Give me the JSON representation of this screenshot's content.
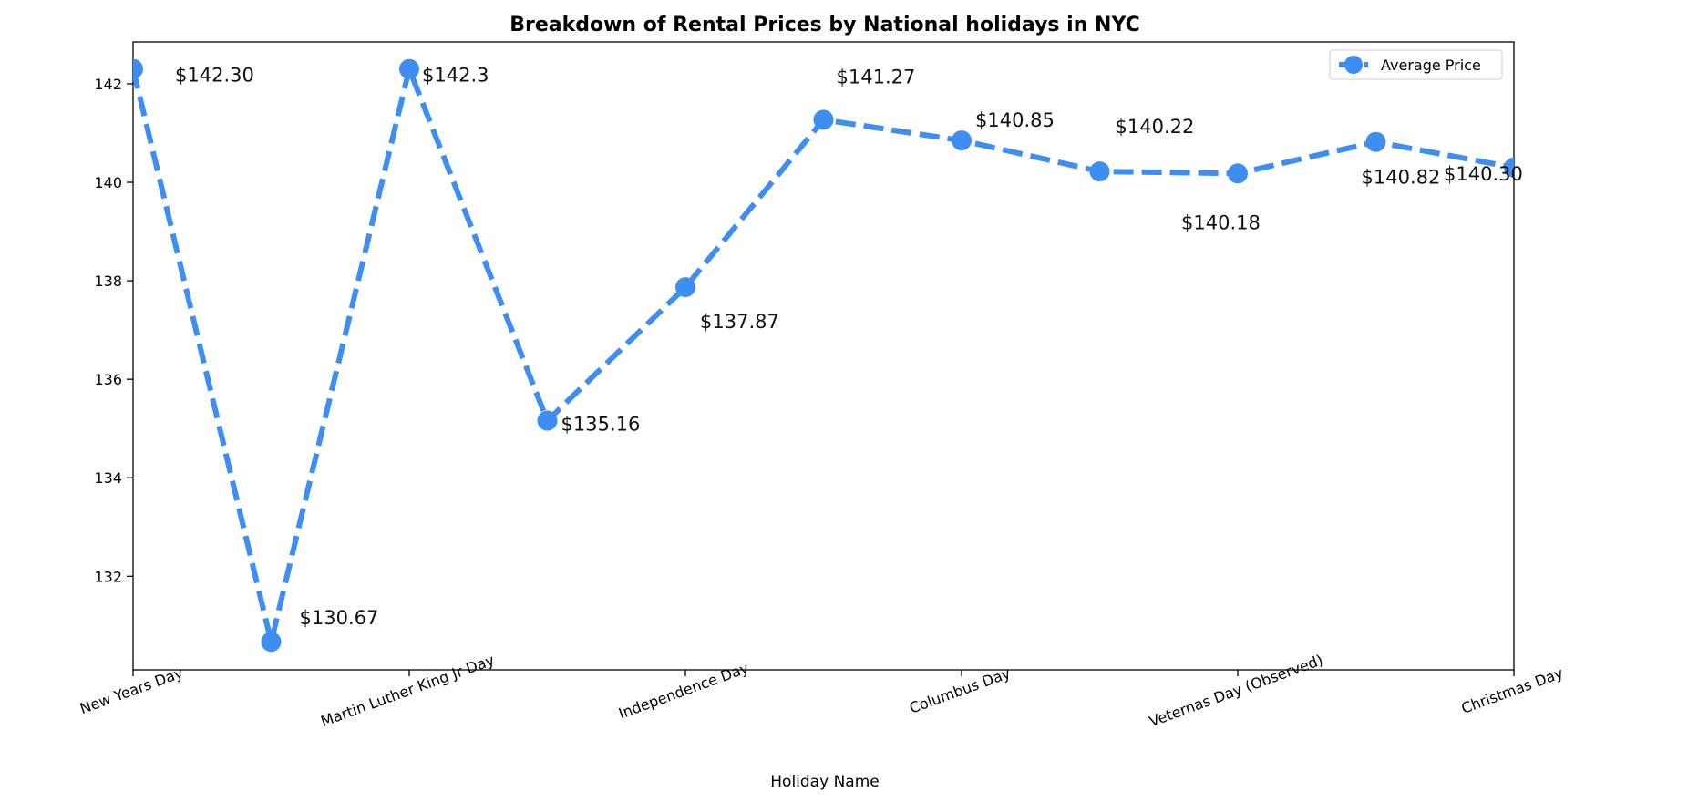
{
  "chart_data": {
    "type": "line",
    "title": "Breakdown of Rental Prices by National holidays in NYC",
    "xlabel": "Holiday Name",
    "ylabel": "",
    "ylim": [
      130.1,
      142.85
    ],
    "yticks": [
      "132",
      "134",
      "136",
      "138",
      "140",
      "142"
    ],
    "ytick_values": [
      132,
      134,
      136,
      138,
      140,
      142
    ],
    "xtick_labels": [
      "New Years Day",
      "Martin Luther King Jr Day",
      "Independence Day",
      "Columbus Day",
      "Veternas Day (Observed)",
      "Christmas Day"
    ],
    "xtick_positions": [
      0,
      2,
      4,
      6,
      8,
      10
    ],
    "x": [
      0,
      1,
      2,
      3,
      4,
      5,
      6,
      7,
      8,
      9,
      10
    ],
    "series": [
      {
        "name": "Average Price",
        "values": [
          142.3,
          130.67,
          142.3,
          135.16,
          137.87,
          141.27,
          140.85,
          140.22,
          140.18,
          140.82,
          140.3
        ],
        "color": "#3d8ef0",
        "line_style": "dashed",
        "marker": "circle"
      }
    ],
    "data_labels": [
      "$142.30",
      "$130.67",
      "$142.3",
      "$135.16",
      "$137.87",
      "$141.27",
      "$140.85",
      "$140.22",
      "$140.18",
      "$140.82",
      "$140.30"
    ],
    "legend": {
      "position": "top-right",
      "entries": [
        "Average Price"
      ]
    },
    "grid": false
  }
}
